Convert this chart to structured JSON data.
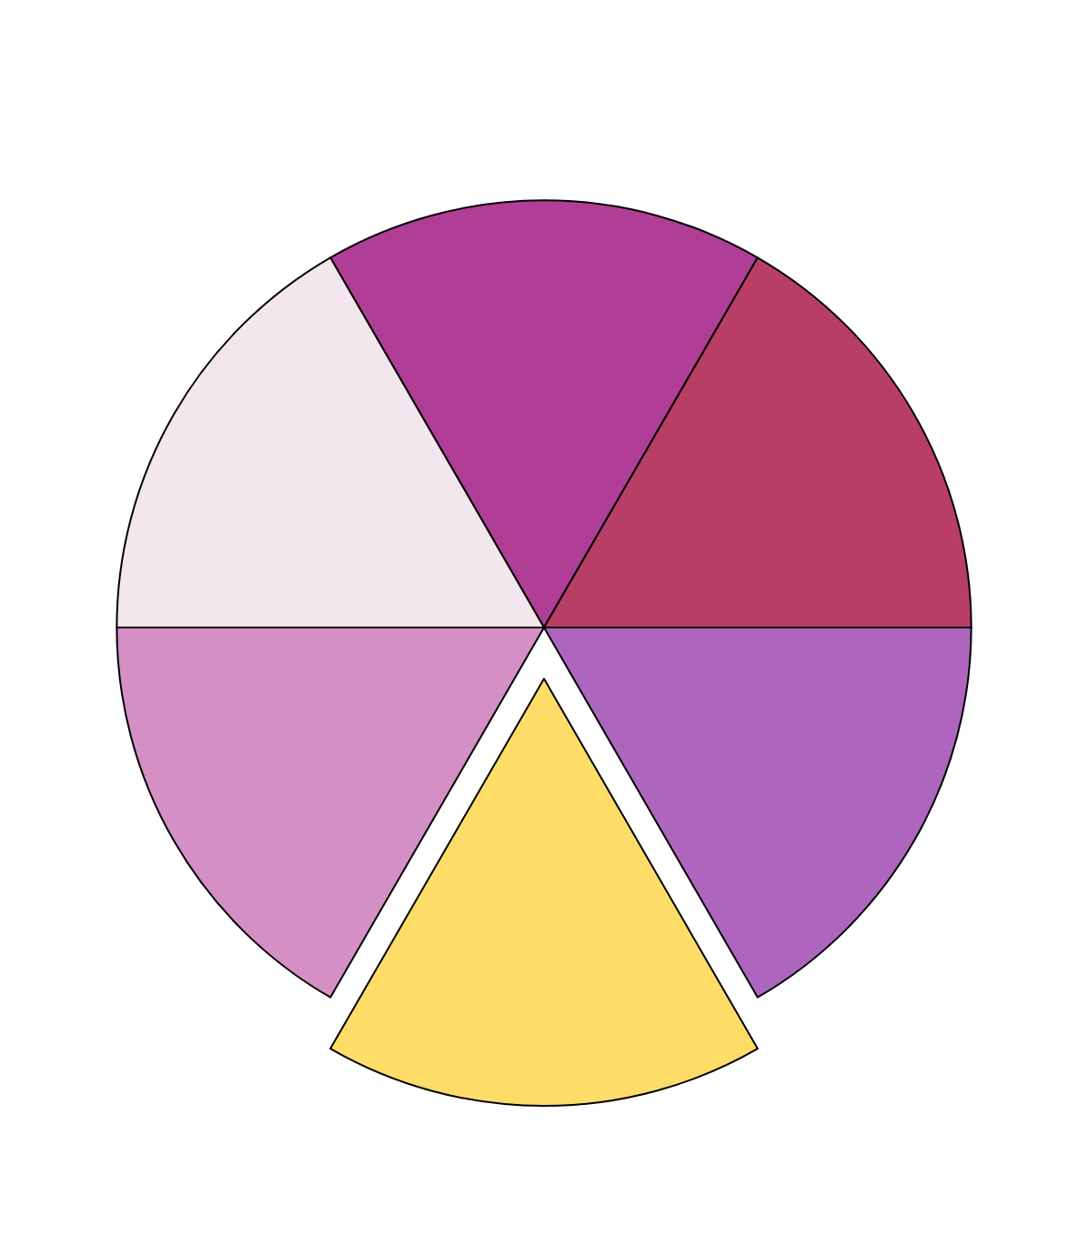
{
  "chart_data": {
    "type": "pie",
    "categories": [
      null,
      null,
      null,
      null,
      null,
      null
    ],
    "values": [
      16.67,
      16.67,
      16.67,
      16.67,
      16.67,
      16.67
    ],
    "colors": [
      "#b03e97",
      "#b83e66",
      "#ad65bd",
      "#fddd68",
      "#d48fc4",
      "#f4e6ed"
    ],
    "legend": false
  }
}
